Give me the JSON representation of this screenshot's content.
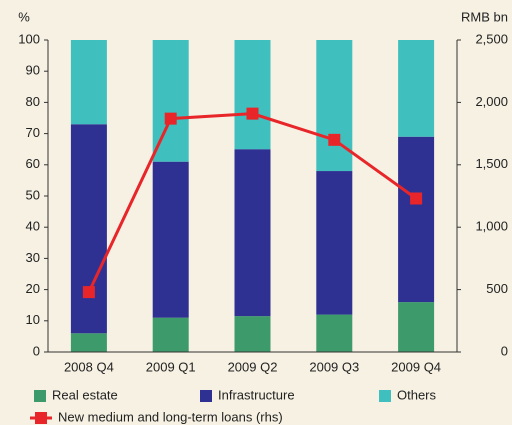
{
  "chart_data": {
    "type": "bar",
    "y_label": "%",
    "y2_label": "RMB bn",
    "categories": [
      "2008 Q4",
      "2009 Q1",
      "2009 Q2",
      "2009 Q3",
      "2009 Q4"
    ],
    "series": [
      {
        "name": "Real estate",
        "color": "#3d9a6b",
        "values": [
          6,
          11,
          11.5,
          12,
          16
        ]
      },
      {
        "name": "Infrastructure",
        "color": "#2e3192",
        "values": [
          67,
          50,
          53.5,
          46,
          53
        ]
      },
      {
        "name": "Others",
        "color": "#40bfbf",
        "values": [
          27,
          39,
          35,
          42,
          31
        ]
      },
      {
        "name": "New medium and long-term loans (rhs)",
        "color": "#e8262a",
        "type": "line",
        "axis": "y2",
        "values": [
          480,
          1870,
          1910,
          1700,
          1230
        ]
      }
    ],
    "ylim": [
      0,
      100
    ],
    "yticks": [
      0,
      10,
      20,
      30,
      40,
      50,
      60,
      70,
      80,
      90,
      100
    ],
    "y2lim": [
      0,
      2500
    ],
    "y2ticks": [
      0,
      500,
      {
        "value": 1000,
        "label": "1,000"
      },
      {
        "value": 1500,
        "label": "1,500"
      },
      {
        "value": 2000,
        "label": "2,000"
      },
      {
        "value": 2500,
        "label": "2,500"
      }
    ],
    "stacked": true
  }
}
